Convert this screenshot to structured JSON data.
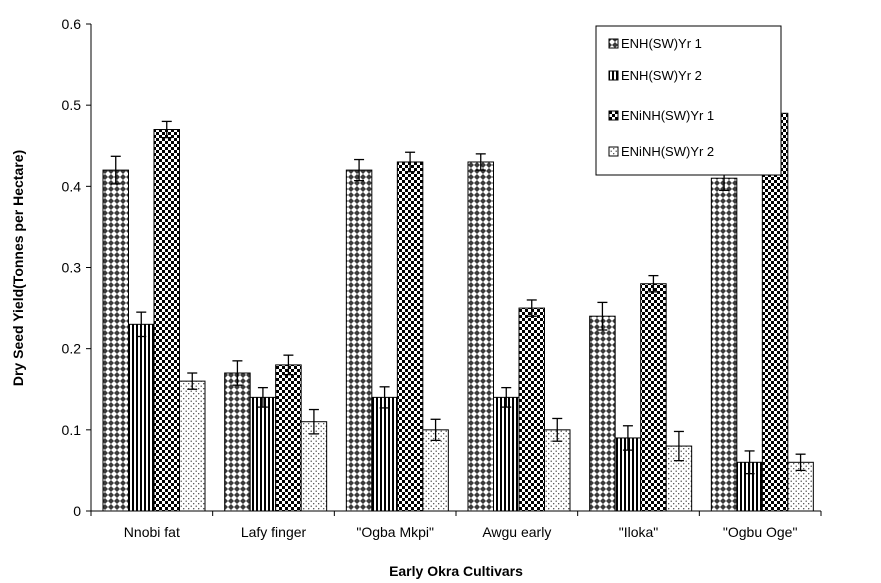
{
  "chart_data": {
    "type": "bar",
    "title": "",
    "xlabel": "Early Okra Cultivars",
    "ylabel": "Dry Seed Yield(Tonnes per Hectare)",
    "ylim": [
      0,
      0.6
    ],
    "yticks": [
      "0",
      "0.1",
      "0.2",
      "0.3",
      "0.4",
      "0.5",
      "0.6"
    ],
    "grid": false,
    "legend_position": "top-right",
    "categories": [
      "Nnobi fat",
      "Lafy finger",
      "\"Ogba Mkpi\"",
      "Awgu early",
      "\"Iloka\"",
      "\"Ogbu Oge\""
    ],
    "series": [
      {
        "name": "ENH(SW)Yr 1",
        "pattern": "diamond",
        "values": [
          0.42,
          0.17,
          0.42,
          0.43,
          0.24,
          0.41
        ],
        "errors": [
          0.017,
          0.015,
          0.013,
          0.01,
          0.017,
          0.015
        ]
      },
      {
        "name": "ENH(SW)Yr 2",
        "pattern": "vertical",
        "values": [
          0.23,
          0.14,
          0.14,
          0.14,
          0.09,
          0.06
        ],
        "errors": [
          0.015,
          0.012,
          0.013,
          0.012,
          0.015,
          0.014
        ]
      },
      {
        "name": "ENiNH(SW)Yr 1",
        "pattern": "checker",
        "values": [
          0.47,
          0.18,
          0.43,
          0.25,
          0.28,
          0.49
        ],
        "errors": [
          0.01,
          0.012,
          0.012,
          0.01,
          0.01,
          0.014
        ]
      },
      {
        "name": "ENiNH(SW)Yr 2",
        "pattern": "dots",
        "values": [
          0.16,
          0.11,
          0.1,
          0.1,
          0.08,
          0.06
        ],
        "errors": [
          0.01,
          0.015,
          0.013,
          0.014,
          0.018,
          0.01
        ]
      }
    ]
  }
}
